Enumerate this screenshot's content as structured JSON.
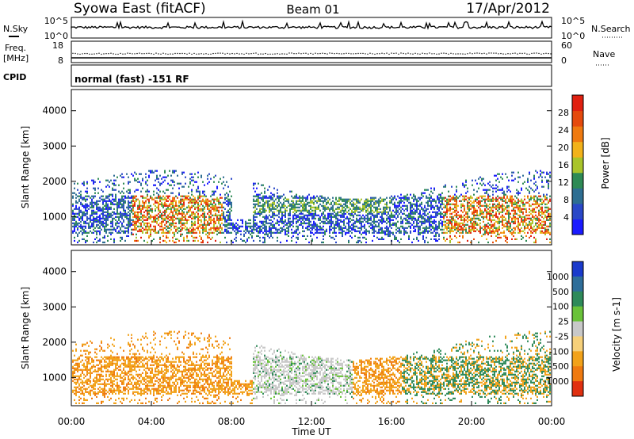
{
  "header": {
    "station": "Syowa East (fitACF)",
    "beam": "Beam 01",
    "date": "17/Apr/2012"
  },
  "panels": {
    "nsky": {
      "label": "N.Sky",
      "tick_top": "10^5",
      "tick_bottom": "10^0",
      "right_label": "N.Search",
      "right_tick_top": "10^5",
      "right_tick_bottom": "10^0"
    },
    "freq": {
      "label_top": "Freq.",
      "label_unit": "[MHz]",
      "tick_top": "18",
      "tick_bottom": "8",
      "right_label": "Nave",
      "right_tick_top": "60",
      "right_tick_bottom": "0"
    },
    "cpid": {
      "label": "CPID",
      "text": "normal (fast) -151 RF"
    }
  },
  "chart_data": [
    {
      "type": "heatmap",
      "name": "power",
      "ylabel": "Slant Range [km]",
      "xlabel": "Time UT",
      "x_ticks": [
        "00:00",
        "04:00",
        "08:00",
        "12:00",
        "16:00",
        "20:00",
        "00:00"
      ],
      "y_ticks": [
        "1000",
        "2000",
        "3000",
        "4000"
      ],
      "ylim": [
        200,
        4600
      ],
      "colorbar": {
        "label": "Power [dB]",
        "ticks": [
          "4",
          "8",
          "12",
          "16",
          "20",
          "24",
          "28"
        ],
        "colors": [
          "#1a1aff",
          "#2a48c8",
          "#2e6e92",
          "#2e8a55",
          "#a9c42a",
          "#f2b21a",
          "#ef7a10",
          "#e54a0d",
          "#e02010"
        ]
      }
    },
    {
      "type": "heatmap",
      "name": "velocity",
      "ylabel": "Slant Range [km]",
      "xlabel": "Time UT",
      "x_ticks": [
        "00:00",
        "04:00",
        "08:00",
        "12:00",
        "16:00",
        "20:00",
        "00:00"
      ],
      "y_ticks": [
        "1000",
        "2000",
        "3000",
        "4000"
      ],
      "ylim": [
        200,
        4600
      ],
      "colorbar": {
        "label": "Velocity [m s-1]",
        "ticks": [
          "1000",
          "500",
          "100",
          "25",
          "-25",
          "-100",
          "-500",
          "-1000"
        ],
        "colors": [
          "#1a3acc",
          "#2f6e9a",
          "#2e8a5a",
          "#6ac23a",
          "#c8c8c8",
          "#f6d07a",
          "#f2a21a",
          "#ef7a10",
          "#e03010"
        ]
      }
    }
  ]
}
